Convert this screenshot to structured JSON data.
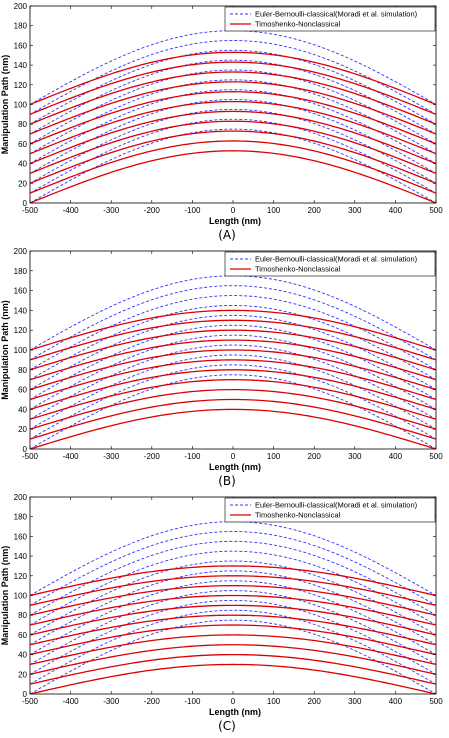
{
  "chart_data": [
    {
      "type": "line",
      "panel_label": "(A)",
      "xlabel": "Length (nm)",
      "ylabel": "Manipulation Path (nm)",
      "xlim": [
        -500,
        500
      ],
      "ylim": [
        0,
        200
      ],
      "xticks": [
        "-500",
        "-400",
        "-300",
        "-200",
        "-100",
        "0",
        "100",
        "200",
        "300",
        "400",
        "500"
      ],
      "yticks": [
        "0",
        "20",
        "40",
        "60",
        "80",
        "100",
        "120",
        "140",
        "160",
        "180",
        "200"
      ],
      "grid": false,
      "legend_position": "top-right",
      "legend": [
        "Euler-Bernoulli-classical(Moradi et al. simulation)",
        "Timoshenko-Nonclassical"
      ],
      "series": [
        {
          "name": "Euler-Bernoulli-classical(Moradi et al. simulation)",
          "color": "#3333ff",
          "style": "dashed",
          "curves": [
            {
              "x_end_value": 0,
              "peak_value": 75
            },
            {
              "x_end_value": 10,
              "peak_value": 85
            },
            {
              "x_end_value": 20,
              "peak_value": 95
            },
            {
              "x_end_value": 30,
              "peak_value": 105
            },
            {
              "x_end_value": 40,
              "peak_value": 115
            },
            {
              "x_end_value": 50,
              "peak_value": 125
            },
            {
              "x_end_value": 60,
              "peak_value": 135
            },
            {
              "x_end_value": 70,
              "peak_value": 145
            },
            {
              "x_end_value": 80,
              "peak_value": 155
            },
            {
              "x_end_value": 90,
              "peak_value": 165
            },
            {
              "x_end_value": 100,
              "peak_value": 175
            }
          ]
        },
        {
          "name": "Timoshenko-Nonclassical",
          "color": "#dd0000",
          "style": "solid",
          "curves": [
            {
              "x_end_value": 0,
              "peak_value": 53
            },
            {
              "x_end_value": 10,
              "peak_value": 63
            },
            {
              "x_end_value": 20,
              "peak_value": 73
            },
            {
              "x_end_value": 30,
              "peak_value": 83
            },
            {
              "x_end_value": 40,
              "peak_value": 93
            },
            {
              "x_end_value": 50,
              "peak_value": 103
            },
            {
              "x_end_value": 60,
              "peak_value": 113
            },
            {
              "x_end_value": 70,
              "peak_value": 123
            },
            {
              "x_end_value": 80,
              "peak_value": 133
            },
            {
              "x_end_value": 90,
              "peak_value": 143
            },
            {
              "x_end_value": 100,
              "peak_value": 153
            }
          ]
        }
      ]
    },
    {
      "type": "line",
      "panel_label": "(B)",
      "xlabel": "Length (nm)",
      "ylabel": "Manipulation Path (nm)",
      "xlim": [
        -500,
        500
      ],
      "ylim": [
        0,
        200
      ],
      "xticks": [
        "-500",
        "-400",
        "-300",
        "-200",
        "-100",
        "0",
        "100",
        "200",
        "300",
        "400",
        "500"
      ],
      "yticks": [
        "0",
        "20",
        "40",
        "60",
        "80",
        "100",
        "120",
        "140",
        "160",
        "180",
        "200"
      ],
      "grid": false,
      "legend_position": "top-right",
      "legend": [
        "Euler-Bernoulli-classical(Moradi et al. simulation)",
        "Timoshenko-Nonclassical"
      ],
      "series": [
        {
          "name": "Euler-Bernoulli-classical(Moradi et al. simulation)",
          "color": "#3333ff",
          "style": "dashed",
          "curves": [
            {
              "x_end_value": 0,
              "peak_value": 75
            },
            {
              "x_end_value": 10,
              "peak_value": 85
            },
            {
              "x_end_value": 20,
              "peak_value": 95
            },
            {
              "x_end_value": 30,
              "peak_value": 105
            },
            {
              "x_end_value": 40,
              "peak_value": 115
            },
            {
              "x_end_value": 50,
              "peak_value": 125
            },
            {
              "x_end_value": 60,
              "peak_value": 135
            },
            {
              "x_end_value": 70,
              "peak_value": 145
            },
            {
              "x_end_value": 80,
              "peak_value": 155
            },
            {
              "x_end_value": 90,
              "peak_value": 165
            },
            {
              "x_end_value": 100,
              "peak_value": 175
            }
          ]
        },
        {
          "name": "Timoshenko-Nonclassical",
          "color": "#dd0000",
          "style": "solid",
          "curves": [
            {
              "x_end_value": 0,
              "peak_value": 40
            },
            {
              "x_end_value": 10,
              "peak_value": 50
            },
            {
              "x_end_value": 20,
              "peak_value": 60
            },
            {
              "x_end_value": 30,
              "peak_value": 70
            },
            {
              "x_end_value": 40,
              "peak_value": 80
            },
            {
              "x_end_value": 50,
              "peak_value": 90
            },
            {
              "x_end_value": 60,
              "peak_value": 100
            },
            {
              "x_end_value": 70,
              "peak_value": 110
            },
            {
              "x_end_value": 80,
              "peak_value": 120
            },
            {
              "x_end_value": 90,
              "peak_value": 130
            },
            {
              "x_end_value": 100,
              "peak_value": 140
            }
          ]
        }
      ]
    },
    {
      "type": "line",
      "panel_label": "(C)",
      "xlabel": "Length (nm)",
      "ylabel": "Manipulation Path (nm)",
      "xlim": [
        -500,
        500
      ],
      "ylim": [
        0,
        200
      ],
      "xticks": [
        "-500",
        "-400",
        "-300",
        "-200",
        "-100",
        "0",
        "100",
        "200",
        "300",
        "400",
        "500"
      ],
      "yticks": [
        "0",
        "20",
        "40",
        "60",
        "80",
        "100",
        "120",
        "140",
        "160",
        "180",
        "200"
      ],
      "grid": false,
      "legend_position": "top-right",
      "legend": [
        "Euler-Bernoulli-classical(Moradi et al. simulation)",
        "Timoshenko-Nonclassical"
      ],
      "series": [
        {
          "name": "Euler-Bernoulli-classical(Moradi et al. simulation)",
          "color": "#3333ff",
          "style": "dashed",
          "curves": [
            {
              "x_end_value": 0,
              "peak_value": 75
            },
            {
              "x_end_value": 10,
              "peak_value": 85
            },
            {
              "x_end_value": 20,
              "peak_value": 95
            },
            {
              "x_end_value": 30,
              "peak_value": 105
            },
            {
              "x_end_value": 40,
              "peak_value": 115
            },
            {
              "x_end_value": 50,
              "peak_value": 125
            },
            {
              "x_end_value": 60,
              "peak_value": 135
            },
            {
              "x_end_value": 70,
              "peak_value": 145
            },
            {
              "x_end_value": 80,
              "peak_value": 155
            },
            {
              "x_end_value": 90,
              "peak_value": 165
            },
            {
              "x_end_value": 100,
              "peak_value": 175
            }
          ]
        },
        {
          "name": "Timoshenko-Nonclassical",
          "color": "#dd0000",
          "style": "solid",
          "curves": [
            {
              "x_end_value": 0,
              "peak_value": 30
            },
            {
              "x_end_value": 10,
              "peak_value": 40
            },
            {
              "x_end_value": 20,
              "peak_value": 50
            },
            {
              "x_end_value": 30,
              "peak_value": 60
            },
            {
              "x_end_value": 40,
              "peak_value": 70
            },
            {
              "x_end_value": 50,
              "peak_value": 80
            },
            {
              "x_end_value": 60,
              "peak_value": 90
            },
            {
              "x_end_value": 70,
              "peak_value": 100
            },
            {
              "x_end_value": 80,
              "peak_value": 110
            },
            {
              "x_end_value": 90,
              "peak_value": 120
            },
            {
              "x_end_value": 100,
              "peak_value": 130
            }
          ]
        }
      ]
    }
  ]
}
